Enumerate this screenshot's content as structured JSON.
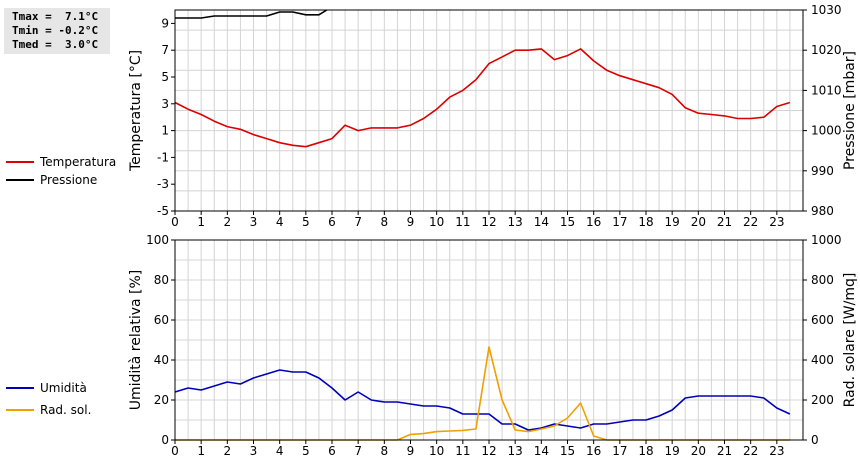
{
  "stats": {
    "tmax": "Tmax =  7.1°C",
    "tmin": "Tmin = -0.2°C",
    "tmed": "Tmed =  3.0°C"
  },
  "colors": {
    "temperature": "#dd0000",
    "pressure": "#000000",
    "humidity": "#0000bb",
    "radiation": "#f0a000",
    "grid": "#d4d4d4"
  },
  "chart_data": [
    {
      "type": "line",
      "xlim": [
        0,
        24
      ],
      "x_ticks": [
        0,
        1,
        2,
        3,
        4,
        5,
        6,
        7,
        8,
        9,
        10,
        11,
        12,
        13,
        14,
        15,
        16,
        17,
        18,
        19,
        20,
        21,
        22,
        23
      ],
      "ylabel_left": "Temperatura [°C]",
      "ylabel_right": "Pressione [mbar]",
      "ylim_left": [
        -5,
        10
      ],
      "left_ticks": [
        9,
        7,
        5,
        3,
        1,
        -1,
        -3,
        -5
      ],
      "ylim_right": [
        980,
        1030
      ],
      "right_ticks": [
        1030,
        1020,
        1010,
        1000,
        990,
        980
      ],
      "grid": true,
      "legend": "left",
      "series": [
        {
          "name": "Temperatura",
          "axis": "left",
          "x": [
            0,
            0.5,
            1,
            1.5,
            2,
            2.5,
            3,
            3.5,
            4,
            4.5,
            5,
            5.5,
            6,
            6.5,
            7,
            7.5,
            8,
            8.5,
            9,
            9.5,
            10,
            10.5,
            11,
            11.5,
            12,
            12.5,
            13,
            13.5,
            14,
            14.5,
            15,
            15.5,
            16,
            16.5,
            17,
            17.5,
            18,
            18.5,
            19,
            19.5,
            20,
            20.5,
            21,
            21.5,
            22,
            22.5,
            23,
            23.5
          ],
          "values": [
            3.1,
            2.6,
            2.2,
            1.7,
            1.3,
            1.1,
            0.7,
            0.4,
            0.1,
            -0.1,
            -0.2,
            0.1,
            0.4,
            1.4,
            1.0,
            1.2,
            1.2,
            1.2,
            1.4,
            1.9,
            2.6,
            3.5,
            4.0,
            4.8,
            6.0,
            6.5,
            7.0,
            7.0,
            7.1,
            6.3,
            6.6,
            7.1,
            6.2,
            5.5,
            5.1,
            4.8,
            4.5,
            4.2,
            3.7,
            2.7,
            2.3,
            2.2,
            2.1,
            1.9,
            1.9,
            2.0,
            2.8,
            3.1
          ]
        },
        {
          "name": "Pressione",
          "axis": "right",
          "x": [
            0,
            0.5,
            1,
            1.5,
            2,
            2.5,
            3,
            3.5,
            4,
            4.5,
            5,
            5.5,
            5.8
          ],
          "values": [
            1028,
            1028,
            1028,
            1028.5,
            1028.5,
            1028.5,
            1028.5,
            1028.5,
            1029.5,
            1029.5,
            1028.8,
            1028.8,
            1030
          ]
        }
      ]
    },
    {
      "type": "line",
      "xlim": [
        0,
        24
      ],
      "x_ticks": [
        0,
        1,
        2,
        3,
        4,
        5,
        6,
        7,
        8,
        9,
        10,
        11,
        12,
        13,
        14,
        15,
        16,
        17,
        18,
        19,
        20,
        21,
        22,
        23
      ],
      "ylabel_left": "Umidità relativa [%]",
      "ylabel_right": "Rad. solare [W/mq]",
      "ylim_left": [
        0,
        100
      ],
      "left_ticks": [
        100,
        80,
        60,
        40,
        20,
        0
      ],
      "ylim_right": [
        0,
        1000
      ],
      "right_ticks": [
        1000,
        800,
        600,
        400,
        200,
        0
      ],
      "grid": true,
      "legend": "left",
      "series": [
        {
          "name": "Umidità",
          "axis": "left",
          "x": [
            0,
            0.5,
            1,
            1.5,
            2,
            2.5,
            3,
            3.5,
            4,
            4.5,
            5,
            5.5,
            6,
            6.5,
            7,
            7.5,
            8,
            8.5,
            9,
            9.5,
            10,
            10.5,
            11,
            11.5,
            12,
            12.5,
            13,
            13.5,
            14,
            14.5,
            15,
            15.5,
            16,
            16.5,
            17,
            17.5,
            18,
            18.5,
            19,
            19.5,
            20,
            20.5,
            21,
            21.5,
            22,
            22.5,
            23,
            23.5
          ],
          "values": [
            24,
            26,
            25,
            27,
            29,
            28,
            31,
            33,
            35,
            34,
            34,
            31,
            26,
            20,
            24,
            20,
            19,
            19,
            18,
            17,
            17,
            16,
            13,
            13,
            13,
            8,
            8,
            5,
            6,
            8,
            7,
            6,
            8,
            8,
            9,
            10,
            10,
            12,
            15,
            21,
            22,
            22,
            22,
            22,
            22,
            21,
            16,
            13
          ]
        },
        {
          "name": "Rad. sol.",
          "axis": "right",
          "x": [
            0,
            1,
            2,
            3,
            4,
            5,
            6,
            7,
            8,
            8.5,
            9,
            9.5,
            10,
            10.5,
            11,
            11.5,
            12,
            12.5,
            13,
            13.5,
            14,
            14.5,
            15,
            15.5,
            16,
            16.5,
            17,
            18,
            19,
            20,
            21,
            22,
            23,
            23.5
          ],
          "values": [
            0,
            0,
            0,
            0,
            0,
            0,
            0,
            0,
            0,
            0,
            28,
            32,
            42,
            45,
            48,
            55,
            465,
            200,
            50,
            42,
            55,
            70,
            110,
            185,
            20,
            0,
            0,
            0,
            0,
            0,
            0,
            0,
            0,
            0
          ]
        }
      ]
    }
  ]
}
